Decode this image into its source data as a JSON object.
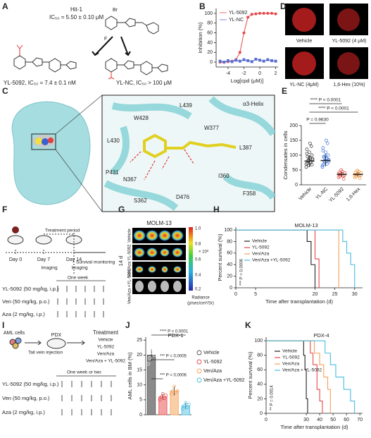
{
  "panel_letters": [
    "A",
    "B",
    "C",
    "D",
    "E",
    "F",
    "G",
    "H",
    "I",
    "J",
    "K"
  ],
  "a": {
    "hit": "Hit-1",
    "hit_ic50": "IC₅₀ = 5.50 ± 0.10 μM",
    "atoms": [
      "Br",
      "F"
    ],
    "left_ic50": "YL-5092, IC₅₀ = 7.4 ± 0.1 nM",
    "right_ic50": "YL-NC, IC₅₀ > 100 μM"
  },
  "c": {
    "residues": [
      "α3-Helix",
      "L439",
      "W428",
      "L430",
      "W377",
      "L387",
      "P431",
      "N367",
      "S362",
      "D476",
      "I360",
      "F358"
    ]
  },
  "d": {
    "labels": [
      "Vehicle",
      "YL-5092 (4 μM)",
      "YL-NC (4μM)",
      "1,6-Hex (10%)"
    ]
  },
  "f": {
    "period": "Treatment period",
    "monitoring": "Survival monitoring",
    "days": [
      "Day 0",
      "Day 7",
      "Day 14"
    ],
    "imaging": [
      "Imaging",
      "Imaging"
    ],
    "week": "One week",
    "regimens": [
      "YL-5092 (50 mg/kg, i.p.)",
      "Ven (50 mg/kg, p.o.)",
      "Aza (2 mg/kg, i.p.)"
    ]
  },
  "g": {
    "title": "MOLM-13",
    "time": "14 d",
    "rows": [
      "Vehicle",
      "YL-5092",
      "Ven/Aza",
      "Ven/Aza +YL-5092"
    ],
    "colorbar": [
      "1.0",
      "0.8",
      "0.6",
      "0.4",
      "0.2"
    ],
    "unit": "× 10⁸",
    "radiance": [
      "Radiance",
      "(p/sec/cm²/Sr)"
    ]
  },
  "i": {
    "cells": "AML cells",
    "pdx": "PDX",
    "injection": "Tail vein injection",
    "treatment": "Treatment",
    "groups": [
      "Vehicle",
      "YL-5092",
      "Ven/Aza",
      "Ven/Aza + YL-5092"
    ],
    "duration": "One week or two",
    "regimens": [
      "YL-5092 (50 mg/kg, i.p.)",
      "Ven (50 mg/kg, p.o.)",
      "Aza (2 mg/kg, i.p.)"
    ]
  },
  "chart_data": [
    {
      "type": "line",
      "xlabel": "Log[cpd (μM)]",
      "ylabel": "Inhibition (%)",
      "x": [
        -5,
        -4.5,
        -4,
        -3.5,
        -3,
        -2.5,
        -2,
        -1.5,
        -1,
        -0.5,
        0,
        0.5,
        1,
        1.5,
        2
      ],
      "xlim": [
        -5.5,
        2.3
      ],
      "xticks": [
        -4,
        -2,
        0,
        2
      ],
      "ylim": [
        -10,
        110
      ],
      "yticks": [
        0,
        20,
        40,
        60,
        80,
        100
      ],
      "legend": "upper left",
      "series": [
        {
          "name": "YL-5092",
          "color": "#e8474a",
          "values": [
            0,
            0,
            1,
            2,
            5,
            20,
            60,
            92,
            98,
            99,
            100,
            100,
            100,
            100,
            99
          ]
        },
        {
          "name": "YL-NC",
          "color": "#5b6fd0",
          "values": [
            2,
            0,
            3,
            1,
            4,
            2,
            5,
            3,
            1,
            6,
            4,
            2,
            5,
            3,
            2
          ]
        }
      ]
    },
    {
      "type": "strip",
      "ylabel": "Condensates in cells",
      "categories": [
        "Vehicle",
        "YL-NC",
        "YL-5092",
        "1,6-Hex"
      ],
      "colors": [
        "#333333",
        "#3b6fd8",
        "#e0403a",
        "#f08a2c"
      ],
      "ylim": [
        0,
        200
      ],
      "yticks": [
        0,
        50,
        100,
        150,
        200
      ],
      "points": [
        [
          70,
          75,
          80,
          85,
          90,
          95,
          100,
          110,
          120,
          130,
          65,
          60,
          78,
          82,
          88,
          140,
          72,
          68,
          92,
          105
        ],
        [
          60,
          70,
          80,
          85,
          90,
          95,
          100,
          110,
          125,
          140,
          75,
          65,
          88,
          92,
          78,
          150,
          70,
          82,
          98,
          115
        ],
        [
          25,
          30,
          35,
          40,
          45,
          28,
          32,
          38,
          42,
          20,
          50,
          36
        ],
        [
          25,
          30,
          35,
          40,
          45,
          28,
          32,
          38,
          42,
          22,
          48,
          34
        ]
      ],
      "means": [
        80,
        82,
        35,
        35
      ],
      "sds": [
        20,
        20,
        8,
        7
      ],
      "annotations": [
        "**** P < 0.0001",
        "**** P < 0.0001",
        "P = 0.9630"
      ]
    },
    {
      "type": "survival",
      "title": "MOLM-13",
      "xlabel": "Time after transplantation (d)",
      "ylabel": "Percent survival (%)",
      "xlim": [
        0,
        32
      ],
      "xticks": [
        0,
        5,
        20,
        25,
        30
      ],
      "ylim": [
        0,
        105
      ],
      "yticks": [
        0,
        20,
        40,
        60,
        80,
        100
      ],
      "annotations": [
        "*** P = 0.0006"
      ],
      "series": [
        {
          "name": "Vehicle",
          "color": "#222222",
          "x": [
            0,
            18,
            18,
            19,
            19,
            20,
            20
          ],
          "y": [
            100,
            100,
            80,
            80,
            40,
            40,
            0
          ]
        },
        {
          "name": "YL-5092",
          "color": "#e8474a",
          "x": [
            0,
            20,
            20,
            21,
            21
          ],
          "y": [
            100,
            100,
            50,
            50,
            0
          ]
        },
        {
          "name": "Ven/Aza",
          "color": "#f5a05a",
          "x": [
            0,
            26,
            26
          ],
          "y": [
            100,
            100,
            0
          ]
        },
        {
          "name": "Ven/Aza +YL-5092",
          "color": "#48bde0",
          "x": [
            0,
            27,
            27,
            28,
            28,
            29,
            29,
            30,
            30
          ],
          "y": [
            100,
            100,
            80,
            80,
            60,
            60,
            40,
            40,
            0
          ]
        }
      ]
    },
    {
      "type": "bar",
      "title": "PDX-1",
      "ylabel": "AML cells in BM (%)",
      "categories": [
        "Vehicle",
        "YL-5092",
        "Ven/Aza",
        "Ven/Aza +YL-5092"
      ],
      "values": [
        20,
        6,
        8,
        3
      ],
      "errors": [
        2,
        1,
        1.5,
        1
      ],
      "points": [
        [
          17,
          19,
          21,
          22,
          20
        ],
        [
          5,
          6,
          7,
          5.5,
          6.5
        ],
        [
          7,
          8,
          9.5,
          7.5,
          8
        ],
        [
          2,
          3,
          4,
          2.5,
          3.5
        ]
      ],
      "colors": [
        "#8a8a8a",
        "#f4a3a4",
        "#f9cfa8",
        "#a9dff0"
      ],
      "edges": [
        "#555555",
        "#e8474a",
        "#f5a05a",
        "#48bde0"
      ],
      "ylim": [
        0,
        26
      ],
      "yticks": [
        0,
        5,
        10,
        15,
        20,
        25
      ],
      "annotations": [
        "**** P < 0.0001",
        "*** P = 0.0005",
        "*** P = 0.0006"
      ]
    },
    {
      "type": "survival",
      "title": "PDX-4",
      "xlabel": "Time after transplantation (d)",
      "ylabel": "Percent survival (%)",
      "xlim": [
        0,
        72
      ],
      "xticks": [
        0,
        30,
        40,
        50,
        60,
        70
      ],
      "ylim": [
        0,
        105
      ],
      "yticks": [
        0,
        20,
        40,
        60,
        80,
        100
      ],
      "annotations": [
        "** P = 0.0014"
      ],
      "series": [
        {
          "name": "Vehicle",
          "color": "#222222",
          "x": [
            0,
            28,
            28,
            29,
            29,
            30,
            30,
            31,
            31
          ],
          "y": [
            100,
            100,
            80,
            80,
            60,
            60,
            20,
            20,
            0
          ]
        },
        {
          "name": "YL-5092",
          "color": "#e8474a",
          "x": [
            0,
            33,
            33,
            35,
            35,
            38,
            38,
            40,
            40,
            42,
            42
          ],
          "y": [
            100,
            100,
            83,
            83,
            67,
            67,
            33,
            33,
            17,
            17,
            0
          ]
        },
        {
          "name": "Ven/Aza",
          "color": "#f5a05a",
          "x": [
            0,
            36,
            36,
            40,
            40,
            43,
            43,
            46,
            46,
            48,
            48
          ],
          "y": [
            100,
            100,
            83,
            83,
            67,
            67,
            50,
            50,
            33,
            33,
            0
          ]
        },
        {
          "name": "Ven/Aza + YL-5092",
          "color": "#48bde0",
          "x": [
            0,
            44,
            44,
            48,
            48,
            52,
            52,
            58,
            58,
            63,
            63,
            66,
            66
          ],
          "y": [
            100,
            100,
            83,
            83,
            67,
            67,
            50,
            50,
            33,
            33,
            17,
            17,
            0
          ]
        }
      ]
    }
  ]
}
